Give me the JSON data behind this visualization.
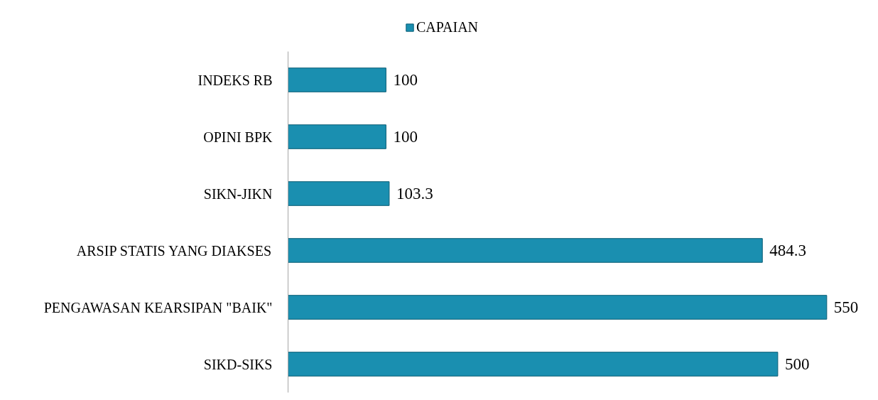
{
  "chart_data": {
    "type": "bar",
    "orientation": "horizontal",
    "categories": [
      "INDEKS RB",
      "OPINI BPK",
      "SIKN-JIKN",
      "ARSIP STATIS YANG DIAKSES",
      "PENGAWASAN KEARSIPAN \"BAIK\"",
      "SIKD-SIKS"
    ],
    "series": [
      {
        "name": "CAPAIAN",
        "color": "#1a8fb0",
        "values": [
          100,
          100,
          103.3,
          484.3,
          550,
          500
        ]
      }
    ],
    "data_labels": true,
    "legend": "top",
    "tick_labels": "y"
  }
}
